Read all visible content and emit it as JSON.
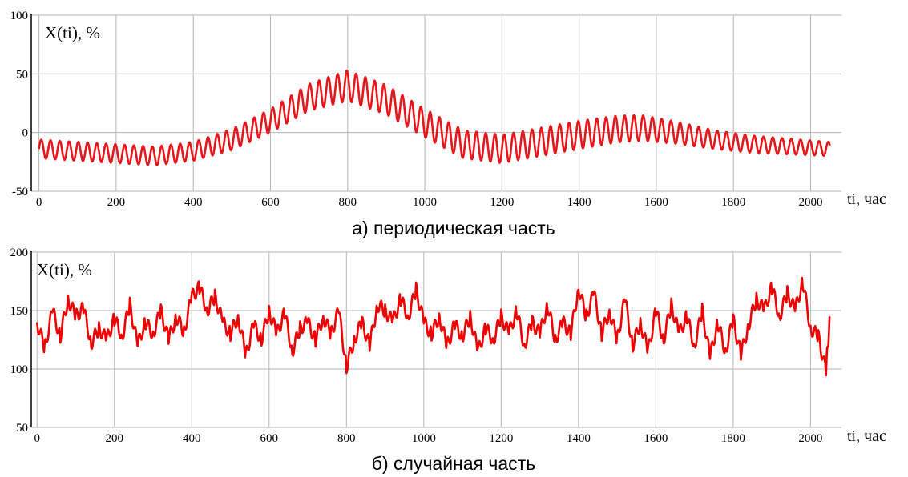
{
  "chart_data": [
    {
      "type": "line",
      "caption": "а) периодическая часть",
      "ylabel": "X(ti), %",
      "xlabel": "ti, час",
      "xlim": [
        -20,
        2080
      ],
      "ylim": [
        -50,
        100
      ],
      "xticks": [
        "0",
        "200",
        "400",
        "600",
        "800",
        "1000",
        "1200",
        "1400",
        "1600",
        "1800",
        "2000"
      ],
      "yticks": [
        "-50",
        "0",
        "50",
        "100"
      ],
      "grid": true,
      "color": "#e8161b",
      "series": [
        {
          "trend_x": [
            0,
            200,
            300,
            400,
            500,
            600,
            700,
            800,
            900,
            1000,
            1100,
            1200,
            1300,
            1400,
            1500,
            1560,
            1650,
            1750,
            1850,
            1950,
            2050
          ],
          "trend_y": [
            -14,
            -18,
            -20,
            -16,
            -6,
            10,
            30,
            40,
            28,
            8,
            -10,
            -14,
            -8,
            -2,
            3,
            4,
            0,
            -6,
            -10,
            -12,
            -14
          ],
          "amplitude_x": [
            0,
            300,
            400,
            600,
            800,
            1000,
            1200,
            1400,
            1550,
            1750,
            2050
          ],
          "amplitude_y": [
            8,
            8,
            8,
            10,
            13,
            12,
            12,
            12,
            11,
            8,
            6
          ],
          "cycle_hours": 24,
          "x_end": 2050
        }
      ]
    },
    {
      "type": "line",
      "caption": "б) случайная часть",
      "ylabel": "X(ti), %",
      "xlabel": "ti, час",
      "xlim": [
        -15,
        2080
      ],
      "ylim": [
        50,
        200
      ],
      "xticks": [
        "0",
        "200",
        "400",
        "600",
        "800",
        "1000",
        "1200",
        "1400",
        "1600",
        "1800",
        "2000"
      ],
      "yticks": [
        "50",
        "100",
        "150",
        "200"
      ],
      "grid": true,
      "color": "#ee0000",
      "series": [
        {
          "x": [
            0,
            20,
            40,
            60,
            80,
            100,
            120,
            140,
            160,
            180,
            200,
            220,
            240,
            260,
            280,
            300,
            320,
            340,
            360,
            380,
            400,
            420,
            440,
            460,
            480,
            500,
            520,
            540,
            560,
            580,
            600,
            620,
            640,
            660,
            680,
            700,
            720,
            740,
            760,
            780,
            800,
            820,
            840,
            860,
            880,
            900,
            920,
            940,
            960,
            980,
            1000,
            1020,
            1040,
            1060,
            1080,
            1100,
            1120,
            1140,
            1160,
            1180,
            1200,
            1220,
            1240,
            1260,
            1280,
            1300,
            1320,
            1340,
            1360,
            1380,
            1400,
            1420,
            1440,
            1460,
            1480,
            1500,
            1520,
            1540,
            1560,
            1580,
            1600,
            1620,
            1640,
            1660,
            1680,
            1700,
            1720,
            1740,
            1760,
            1780,
            1800,
            1820,
            1840,
            1860,
            1880,
            1900,
            1920,
            1940,
            1960,
            1980,
            2000,
            2020,
            2040,
            2050
          ],
          "y": [
            140,
            118,
            150,
            128,
            160,
            145,
            152,
            122,
            135,
            125,
            143,
            128,
            155,
            120,
            140,
            130,
            150,
            125,
            145,
            132,
            162,
            170,
            150,
            162,
            140,
            130,
            145,
            112,
            138,
            125,
            150,
            130,
            148,
            115,
            135,
            140,
            125,
            145,
            130,
            150,
            102,
            125,
            140,
            120,
            155,
            150,
            140,
            160,
            145,
            168,
            140,
            130,
            145,
            120,
            138,
            128,
            145,
            115,
            135,
            125,
            145,
            130,
            150,
            120,
            140,
            130,
            155,
            125,
            140,
            130,
            170,
            145,
            165,
            130,
            150,
            125,
            160,
            120,
            140,
            115,
            150,
            125,
            155,
            130,
            145,
            120,
            150,
            110,
            140,
            115,
            142,
            112,
            138,
            160,
            150,
            170,
            145,
            165,
            150,
            175,
            135,
            128,
            98,
            145
          ]
        }
      ]
    }
  ]
}
